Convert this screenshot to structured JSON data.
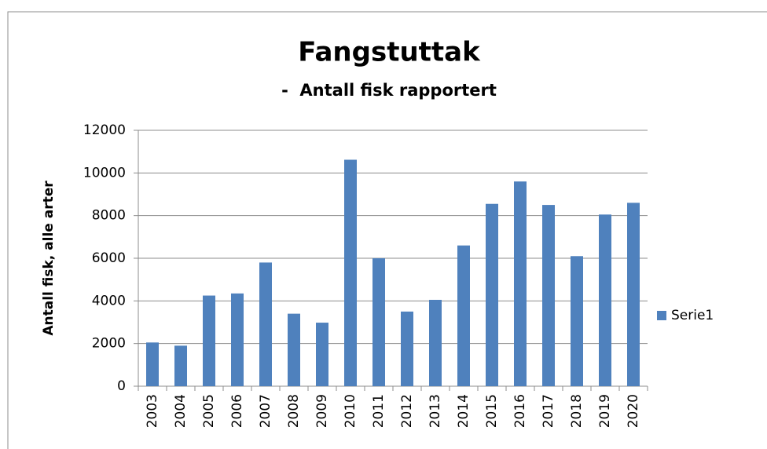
{
  "chart_data": {
    "type": "bar",
    "title": "Fangstuttak",
    "subtitle": "-  Antall fisk rapportert",
    "y_label": "Antall fisk, alle arter",
    "categories": [
      "2003",
      "2004",
      "2005",
      "2006",
      "2007",
      "2008",
      "2009",
      "2010",
      "2011",
      "2012",
      "2013",
      "2014",
      "2015",
      "2016",
      "2017",
      "2018",
      "2019",
      "2020"
    ],
    "series": [
      {
        "name": "Serie1",
        "color": "#4f81bd",
        "values": [
          2050,
          1900,
          4250,
          4350,
          5800,
          3400,
          2980,
          10620,
          6000,
          3500,
          4050,
          6600,
          8550,
          9600,
          8500,
          6100,
          8050,
          8600
        ]
      }
    ],
    "ylim": [
      0,
      12000
    ],
    "yticks": [
      0,
      2000,
      4000,
      6000,
      8000,
      10000,
      12000
    ],
    "grid": true,
    "legend": "right"
  }
}
